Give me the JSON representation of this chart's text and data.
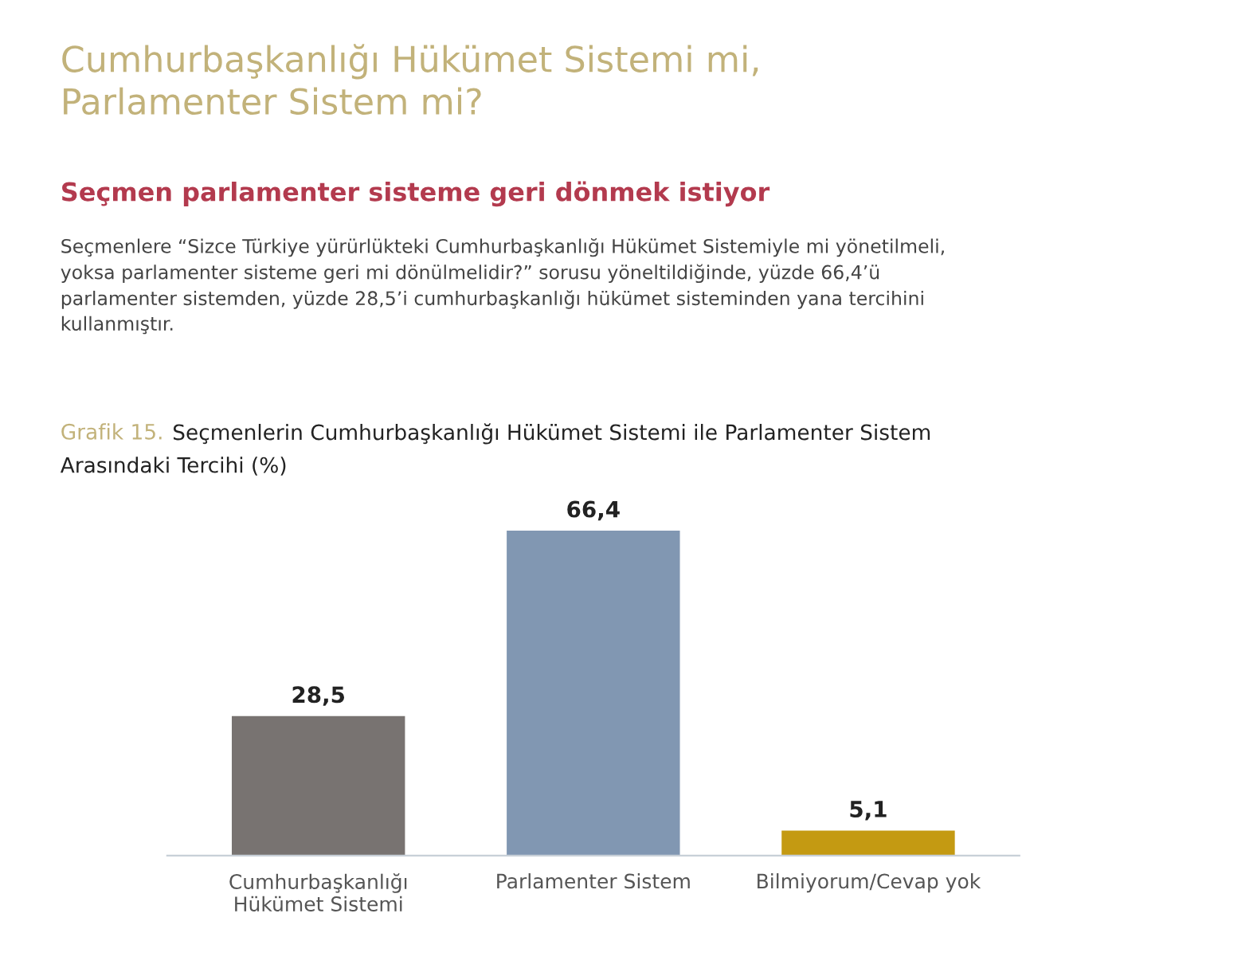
{
  "chart_data": {
    "type": "bar",
    "title": "Cumhurbaşkanlığı Hükümet Sistemi mi,\nParlamenter Sistem mi?",
    "subtitle": "Seçmen parlamenter sisteme geri dönmek istiyor",
    "annotations": [
      "Seçmenlere “Sizce Türkiye yürürlükteki Cumhurbaşkanlığı Hükümet Sistemiyle mi yönetilmeli,\nyoksa parlamenter sisteme geri mi dönülmelidir?” sorusu yöneltildiğinde, yüzde 66,4’ü\nparlamenter sistemden, yüzde 28,5’i cumhurbaşkanlığı hükümet sisteminden yana tercihini\nkullanmıştır.",
      "Grafik 15.",
      "Seçmenlerin Cumhurbaşkanlığı Hükümet Sistemi ile Parlamenter Sistem\nArasındaki Tercihi (%)"
    ],
    "categories": [
      "Cumhurbaşkanlığı\nHükümet Sistemi",
      "Parlamenter Sistem",
      "Bilmiyorum/Cevap yok"
    ],
    "values": [
      28.5,
      66.4,
      5.1
    ],
    "colors": [
      "#787371",
      "#8197b2",
      "#c49a12"
    ],
    "value_labels": [
      "28,5",
      "66,4",
      "5,1"
    ],
    "tick_labels": "x",
    "grid": false,
    "legend": false
  }
}
